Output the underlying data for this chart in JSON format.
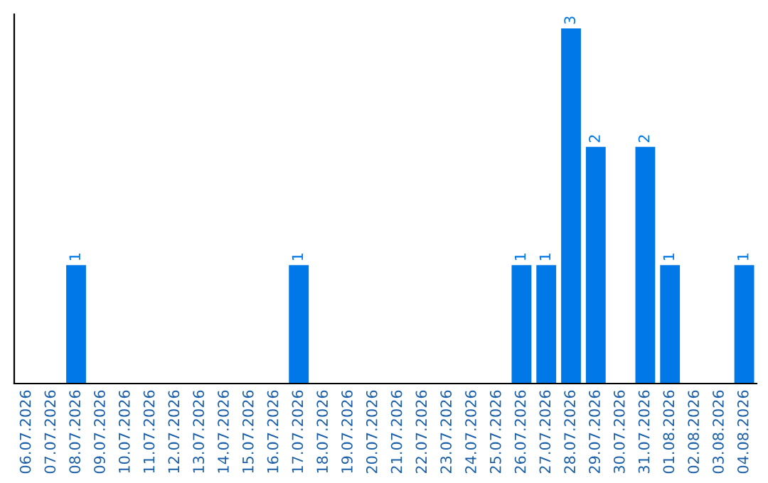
{
  "chart_data": {
    "type": "bar",
    "categories": [
      "06.07.2026",
      "07.07.2026",
      "08.07.2026",
      "09.07.2026",
      "10.07.2026",
      "11.07.2026",
      "12.07.2026",
      "13.07.2026",
      "14.07.2026",
      "15.07.2026",
      "16.07.2026",
      "17.07.2026",
      "18.07.2026",
      "19.07.2026",
      "20.07.2026",
      "21.07.2026",
      "22.07.2026",
      "23.07.2026",
      "24.07.2026",
      "25.07.2026",
      "26.07.2026",
      "27.07.2026",
      "28.07.2026",
      "29.07.2026",
      "30.07.2026",
      "31.07.2026",
      "01.08.2026",
      "02.08.2026",
      "03.08.2026",
      "04.08.2026"
    ],
    "values": [
      0,
      0,
      1,
      0,
      0,
      0,
      0,
      0,
      0,
      0,
      0,
      1,
      0,
      0,
      0,
      0,
      0,
      0,
      0,
      0,
      1,
      1,
      3,
      2,
      0,
      2,
      1,
      0,
      0,
      1
    ],
    "value_labels": [
      null,
      null,
      "1",
      null,
      null,
      null,
      null,
      null,
      null,
      null,
      null,
      "1",
      null,
      null,
      null,
      null,
      null,
      null,
      null,
      null,
      "1",
      "1",
      "3",
      "2",
      null,
      "2",
      "1",
      null,
      null,
      "1"
    ],
    "color": "#0078e7",
    "ylim": [
      0,
      3.12
    ],
    "tick_labels": "x",
    "grid": false
  }
}
